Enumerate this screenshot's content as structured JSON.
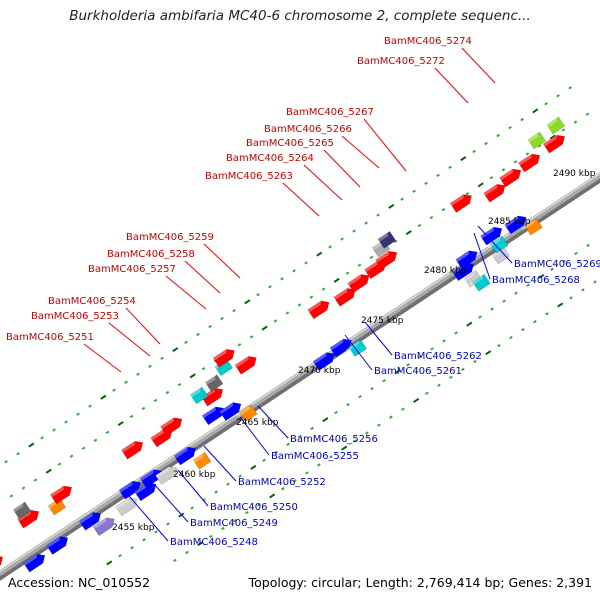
{
  "title": "Burkholderia ambifaria MC40-6 chromosome 2, complete sequenc...",
  "footer": {
    "accession": "Accession: NC_010552",
    "summary": "Topology: circular; Length: 2,769,414 bp; Genes: 2,391"
  },
  "colors": {
    "backbone": "#8a8a8a",
    "leader_top": "#ff0000",
    "leader_bottom": "#0000ff",
    "label_top": "#cc0000",
    "label_bottom": "#0000cc",
    "dots_outer": "#33aa33",
    "dots_tick": "#006600"
  },
  "scale": {
    "unit": "kbp",
    "ticks": [
      {
        "kbp": 2455,
        "label": "2455 kbp"
      },
      {
        "kbp": 2460,
        "label": "2460 kbp"
      },
      {
        "kbp": 2465,
        "label": "2465 kbp"
      },
      {
        "kbp": 2470,
        "label": "2470 kbp"
      },
      {
        "kbp": 2475,
        "label": "2475 kbp"
      },
      {
        "kbp": 2480,
        "label": "2480 kbp"
      },
      {
        "kbp": 2485,
        "label": "2485 kbp"
      },
      {
        "kbp": 2490,
        "label": "2490 kbp"
      }
    ]
  },
  "labeled_genes": [
    {
      "name": "BamMC406_5274",
      "side": "top"
    },
    {
      "name": "BamMC406_5272",
      "side": "top"
    },
    {
      "name": "BamMC406_5267",
      "side": "top"
    },
    {
      "name": "BamMC406_5266",
      "side": "top"
    },
    {
      "name": "BamMC406_5265",
      "side": "top"
    },
    {
      "name": "BamMC406_5264",
      "side": "top"
    },
    {
      "name": "BamMC406_5263",
      "side": "top"
    },
    {
      "name": "BamMC406_5259",
      "side": "top"
    },
    {
      "name": "BamMC406_5258",
      "side": "top"
    },
    {
      "name": "BamMC406_5257",
      "side": "top"
    },
    {
      "name": "BamMC406_5254",
      "side": "top"
    },
    {
      "name": "BamMC406_5253",
      "side": "top"
    },
    {
      "name": "BamMC406_5251",
      "side": "top"
    },
    {
      "name": "BamMC406_5269",
      "side": "bottom"
    },
    {
      "name": "BamMC406_5268",
      "side": "bottom"
    },
    {
      "name": "BamMC406_5262",
      "side": "bottom"
    },
    {
      "name": "BamMC406_5261",
      "side": "bottom"
    },
    {
      "name": "BamMC406_5256",
      "side": "bottom"
    },
    {
      "name": "BamMC406_5255",
      "side": "bottom"
    },
    {
      "name": "BamMC406_5252",
      "side": "bottom"
    },
    {
      "name": "BamMC406_5250",
      "side": "bottom"
    },
    {
      "name": "BamMC406_5249",
      "side": "bottom"
    },
    {
      "name": "BamMC406_5248",
      "side": "bottom"
    }
  ]
}
